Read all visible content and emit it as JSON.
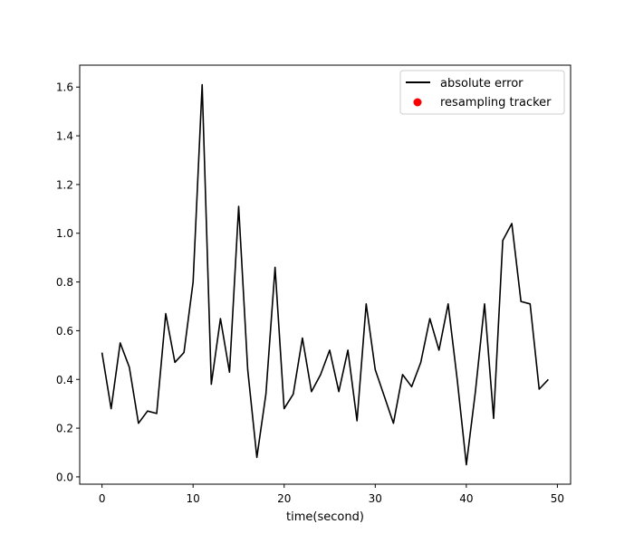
{
  "chart_data": {
    "type": "line",
    "title": "",
    "xlabel": "time(second)",
    "ylabel": "",
    "xlim": [
      -2.45,
      51.45
    ],
    "ylim": [
      -0.03,
      1.69
    ],
    "xticks": [
      0,
      10,
      20,
      30,
      40,
      50
    ],
    "yticks": [
      0.0,
      0.2,
      0.4,
      0.6,
      0.8,
      1.0,
      1.2,
      1.4,
      1.6
    ],
    "grid": false,
    "legend_position": "top-right",
    "series": [
      {
        "name": "absolute error",
        "kind": "line",
        "color": "#000000",
        "x": [
          0,
          1,
          2,
          3,
          4,
          5,
          6,
          7,
          8,
          9,
          10,
          11,
          12,
          13,
          14,
          15,
          16,
          17,
          18,
          19,
          20,
          21,
          22,
          23,
          24,
          25,
          26,
          27,
          28,
          29,
          30,
          31,
          32,
          33,
          34,
          35,
          36,
          37,
          38,
          39,
          40,
          41,
          42,
          43,
          44,
          45,
          46,
          47,
          48,
          49
        ],
        "y": [
          0.51,
          0.28,
          0.55,
          0.45,
          0.22,
          0.27,
          0.26,
          0.67,
          0.47,
          0.51,
          0.8,
          1.61,
          0.38,
          0.65,
          0.43,
          1.11,
          0.44,
          0.08,
          0.34,
          0.86,
          0.28,
          0.34,
          0.57,
          0.35,
          0.42,
          0.52,
          0.35,
          0.52,
          0.23,
          0.71,
          0.44,
          0.33,
          0.22,
          0.42,
          0.37,
          0.47,
          0.65,
          0.52,
          0.71,
          0.4,
          0.05,
          0.35,
          0.71,
          0.24,
          0.97,
          1.04,
          0.72,
          0.71,
          0.36,
          0.4
        ]
      },
      {
        "name": "resampling tracker",
        "kind": "scatter",
        "color": "#ff0000",
        "x": [],
        "y": []
      }
    ]
  }
}
